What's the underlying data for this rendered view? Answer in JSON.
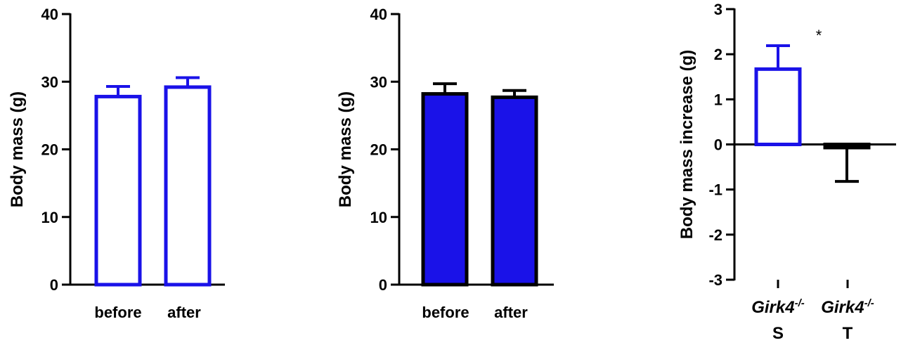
{
  "chart_data": [
    {
      "type": "bar",
      "ylabel": "Body mass (g)",
      "ylim": [
        0,
        40
      ],
      "yticks": [
        0,
        10,
        20,
        30,
        40
      ],
      "categories": [
        "before",
        "after"
      ],
      "values": [
        27.8,
        29.2
      ],
      "errors": [
        1.5,
        1.4
      ],
      "colors": {
        "fill": "#ffffff",
        "stroke": "#1a12e8",
        "error": "#1a12e8"
      }
    },
    {
      "type": "bar",
      "ylabel": "Body mass (g)",
      "ylim": [
        0,
        40
      ],
      "yticks": [
        0,
        10,
        20,
        30,
        40
      ],
      "categories": [
        "before",
        "after"
      ],
      "values": [
        28.2,
        27.7
      ],
      "errors": [
        1.5,
        1.0
      ],
      "colors": {
        "fill": "#1a12e8",
        "stroke": "#000000",
        "error": "#000000"
      }
    },
    {
      "type": "bar",
      "ylabel": "Body mass increase (g)",
      "ylim": [
        -3,
        3
      ],
      "yticks": [
        -3,
        -2,
        -1,
        0,
        1,
        2,
        3
      ],
      "categories": [
        {
          "genotype": "Girk4",
          "superscript": "-/-",
          "group": "S"
        },
        {
          "genotype": "Girk4",
          "superscript": "-/-",
          "group": "T"
        }
      ],
      "values": [
        1.67,
        -0.07
      ],
      "errors": [
        0.52,
        0.75
      ],
      "annotation": "*",
      "colors": {
        "fill": "#ffffff",
        "stroke0": "#1a12e8",
        "stroke1": "#000000"
      }
    }
  ]
}
